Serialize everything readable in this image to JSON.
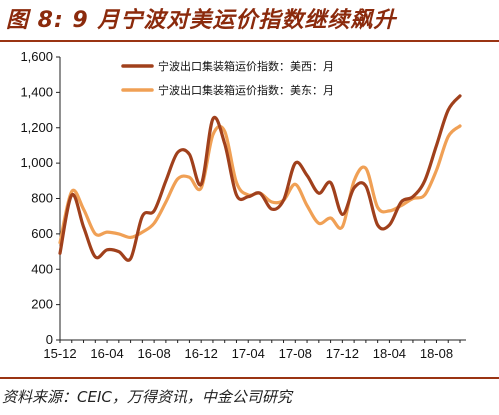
{
  "header": {
    "title": "图 8: 9 月宁波对美运价指数继续飙升"
  },
  "footer": {
    "source": "资料来源：CEIC，万得资讯，中金公司研究"
  },
  "colors": {
    "series_west": "#a0401c",
    "series_east": "#f0a055",
    "accent": "#9a3413"
  },
  "chart_data": {
    "type": "line",
    "title": "",
    "xlabel": "",
    "ylabel": "",
    "ylim": [
      0,
      1600
    ],
    "yticks": [
      0,
      200,
      400,
      600,
      800,
      1000,
      1200,
      1400,
      1600
    ],
    "ytick_labels": [
      "0",
      "200",
      "400",
      "600",
      "800",
      "1,000",
      "1,200",
      "1,400",
      "1,600"
    ],
    "xlim": [
      0,
      34
    ],
    "xticks": [
      0,
      4,
      8,
      12,
      16,
      20,
      24,
      28,
      32
    ],
    "xtick_labels": [
      "15-12",
      "16-04",
      "16-08",
      "16-12",
      "17-04",
      "17-08",
      "17-12",
      "18-04",
      "18-08"
    ],
    "grid": false,
    "legend": "top-right",
    "series": [
      {
        "name": "宁波出口集装箱运价指数：美西：月",
        "x": [
          0,
          1,
          2,
          3,
          4,
          5,
          6,
          7,
          8,
          9,
          10,
          11,
          12,
          13,
          14,
          15,
          16,
          17,
          18,
          19,
          20,
          21,
          22,
          23,
          24,
          25,
          26,
          27,
          28,
          29,
          30,
          31,
          32,
          33,
          34
        ],
        "values": [
          490,
          820,
          640,
          470,
          510,
          500,
          460,
          700,
          730,
          900,
          1060,
          1050,
          880,
          1250,
          1110,
          820,
          810,
          830,
          740,
          790,
          1000,
          930,
          830,
          890,
          710,
          860,
          870,
          650,
          650,
          780,
          810,
          900,
          1100,
          1300,
          1380
        ]
      },
      {
        "name": "宁波出口集装箱运价指数：美东：月",
        "x": [
          0,
          1,
          2,
          3,
          4,
          5,
          6,
          7,
          8,
          9,
          10,
          11,
          12,
          13,
          14,
          15,
          16,
          17,
          18,
          19,
          20,
          21,
          22,
          23,
          24,
          25,
          26,
          27,
          28,
          29,
          30,
          31,
          32,
          33,
          34
        ],
        "values": [
          550,
          840,
          740,
          600,
          610,
          600,
          580,
          610,
          660,
          780,
          910,
          920,
          860,
          1160,
          1180,
          890,
          820,
          830,
          780,
          790,
          880,
          760,
          660,
          690,
          640,
          900,
          970,
          750,
          730,
          760,
          800,
          820,
          960,
          1150,
          1210
        ]
      }
    ]
  }
}
